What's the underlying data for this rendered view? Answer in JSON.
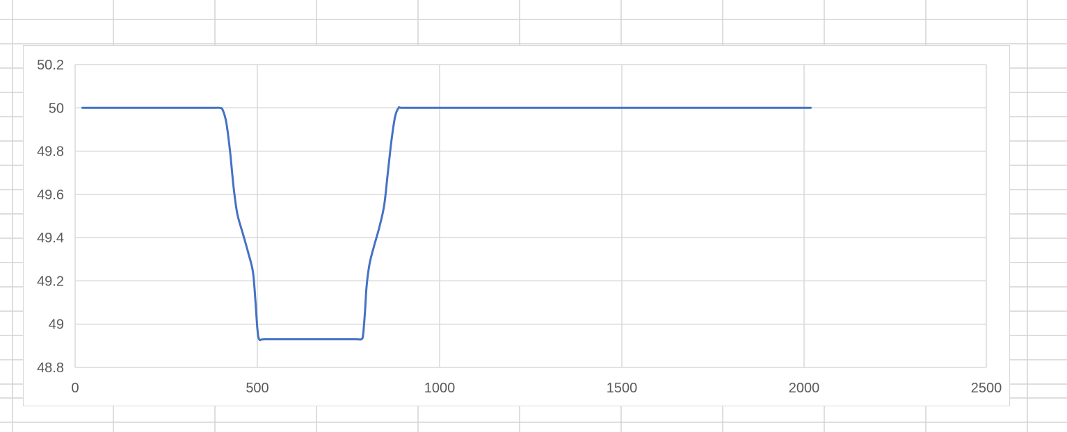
{
  "chart_data": {
    "type": "line",
    "title": "",
    "xlabel": "",
    "ylabel": "",
    "xlim": [
      0,
      2500
    ],
    "ylim": [
      48.8,
      50.2
    ],
    "x_ticks": [
      "0",
      "500",
      "1000",
      "1500",
      "2000",
      "2500"
    ],
    "y_ticks": [
      "50.2",
      "50",
      "49.8",
      "49.6",
      "49.4",
      "49.2",
      "49",
      "48.8"
    ],
    "grid": true,
    "legend": "none",
    "series": [
      {
        "color": "#4472c4",
        "points": [
          [
            20,
            50.0
          ],
          [
            100,
            50.0
          ],
          [
            200,
            50.0
          ],
          [
            300,
            50.0
          ],
          [
            380,
            50.0
          ],
          [
            397,
            50.0
          ],
          [
            405,
            49.99
          ],
          [
            415,
            49.93
          ],
          [
            425,
            49.8
          ],
          [
            435,
            49.63
          ],
          [
            445,
            49.51
          ],
          [
            460,
            49.42
          ],
          [
            475,
            49.33
          ],
          [
            488,
            49.24
          ],
          [
            495,
            49.1
          ],
          [
            500,
            48.98
          ],
          [
            505,
            48.93
          ],
          [
            520,
            48.93
          ],
          [
            600,
            48.93
          ],
          [
            700,
            48.93
          ],
          [
            770,
            48.93
          ],
          [
            785,
            48.93
          ],
          [
            790,
            48.95
          ],
          [
            795,
            49.05
          ],
          [
            800,
            49.18
          ],
          [
            808,
            49.28
          ],
          [
            820,
            49.36
          ],
          [
            835,
            49.45
          ],
          [
            848,
            49.55
          ],
          [
            858,
            49.7
          ],
          [
            868,
            49.85
          ],
          [
            878,
            49.96
          ],
          [
            888,
            50.0
          ],
          [
            900,
            50.0
          ],
          [
            1000,
            50.0
          ],
          [
            1200,
            50.0
          ],
          [
            1500,
            50.0
          ],
          [
            1800,
            50.0
          ],
          [
            2000,
            50.0
          ],
          [
            2010,
            50.0
          ]
        ]
      }
    ]
  }
}
